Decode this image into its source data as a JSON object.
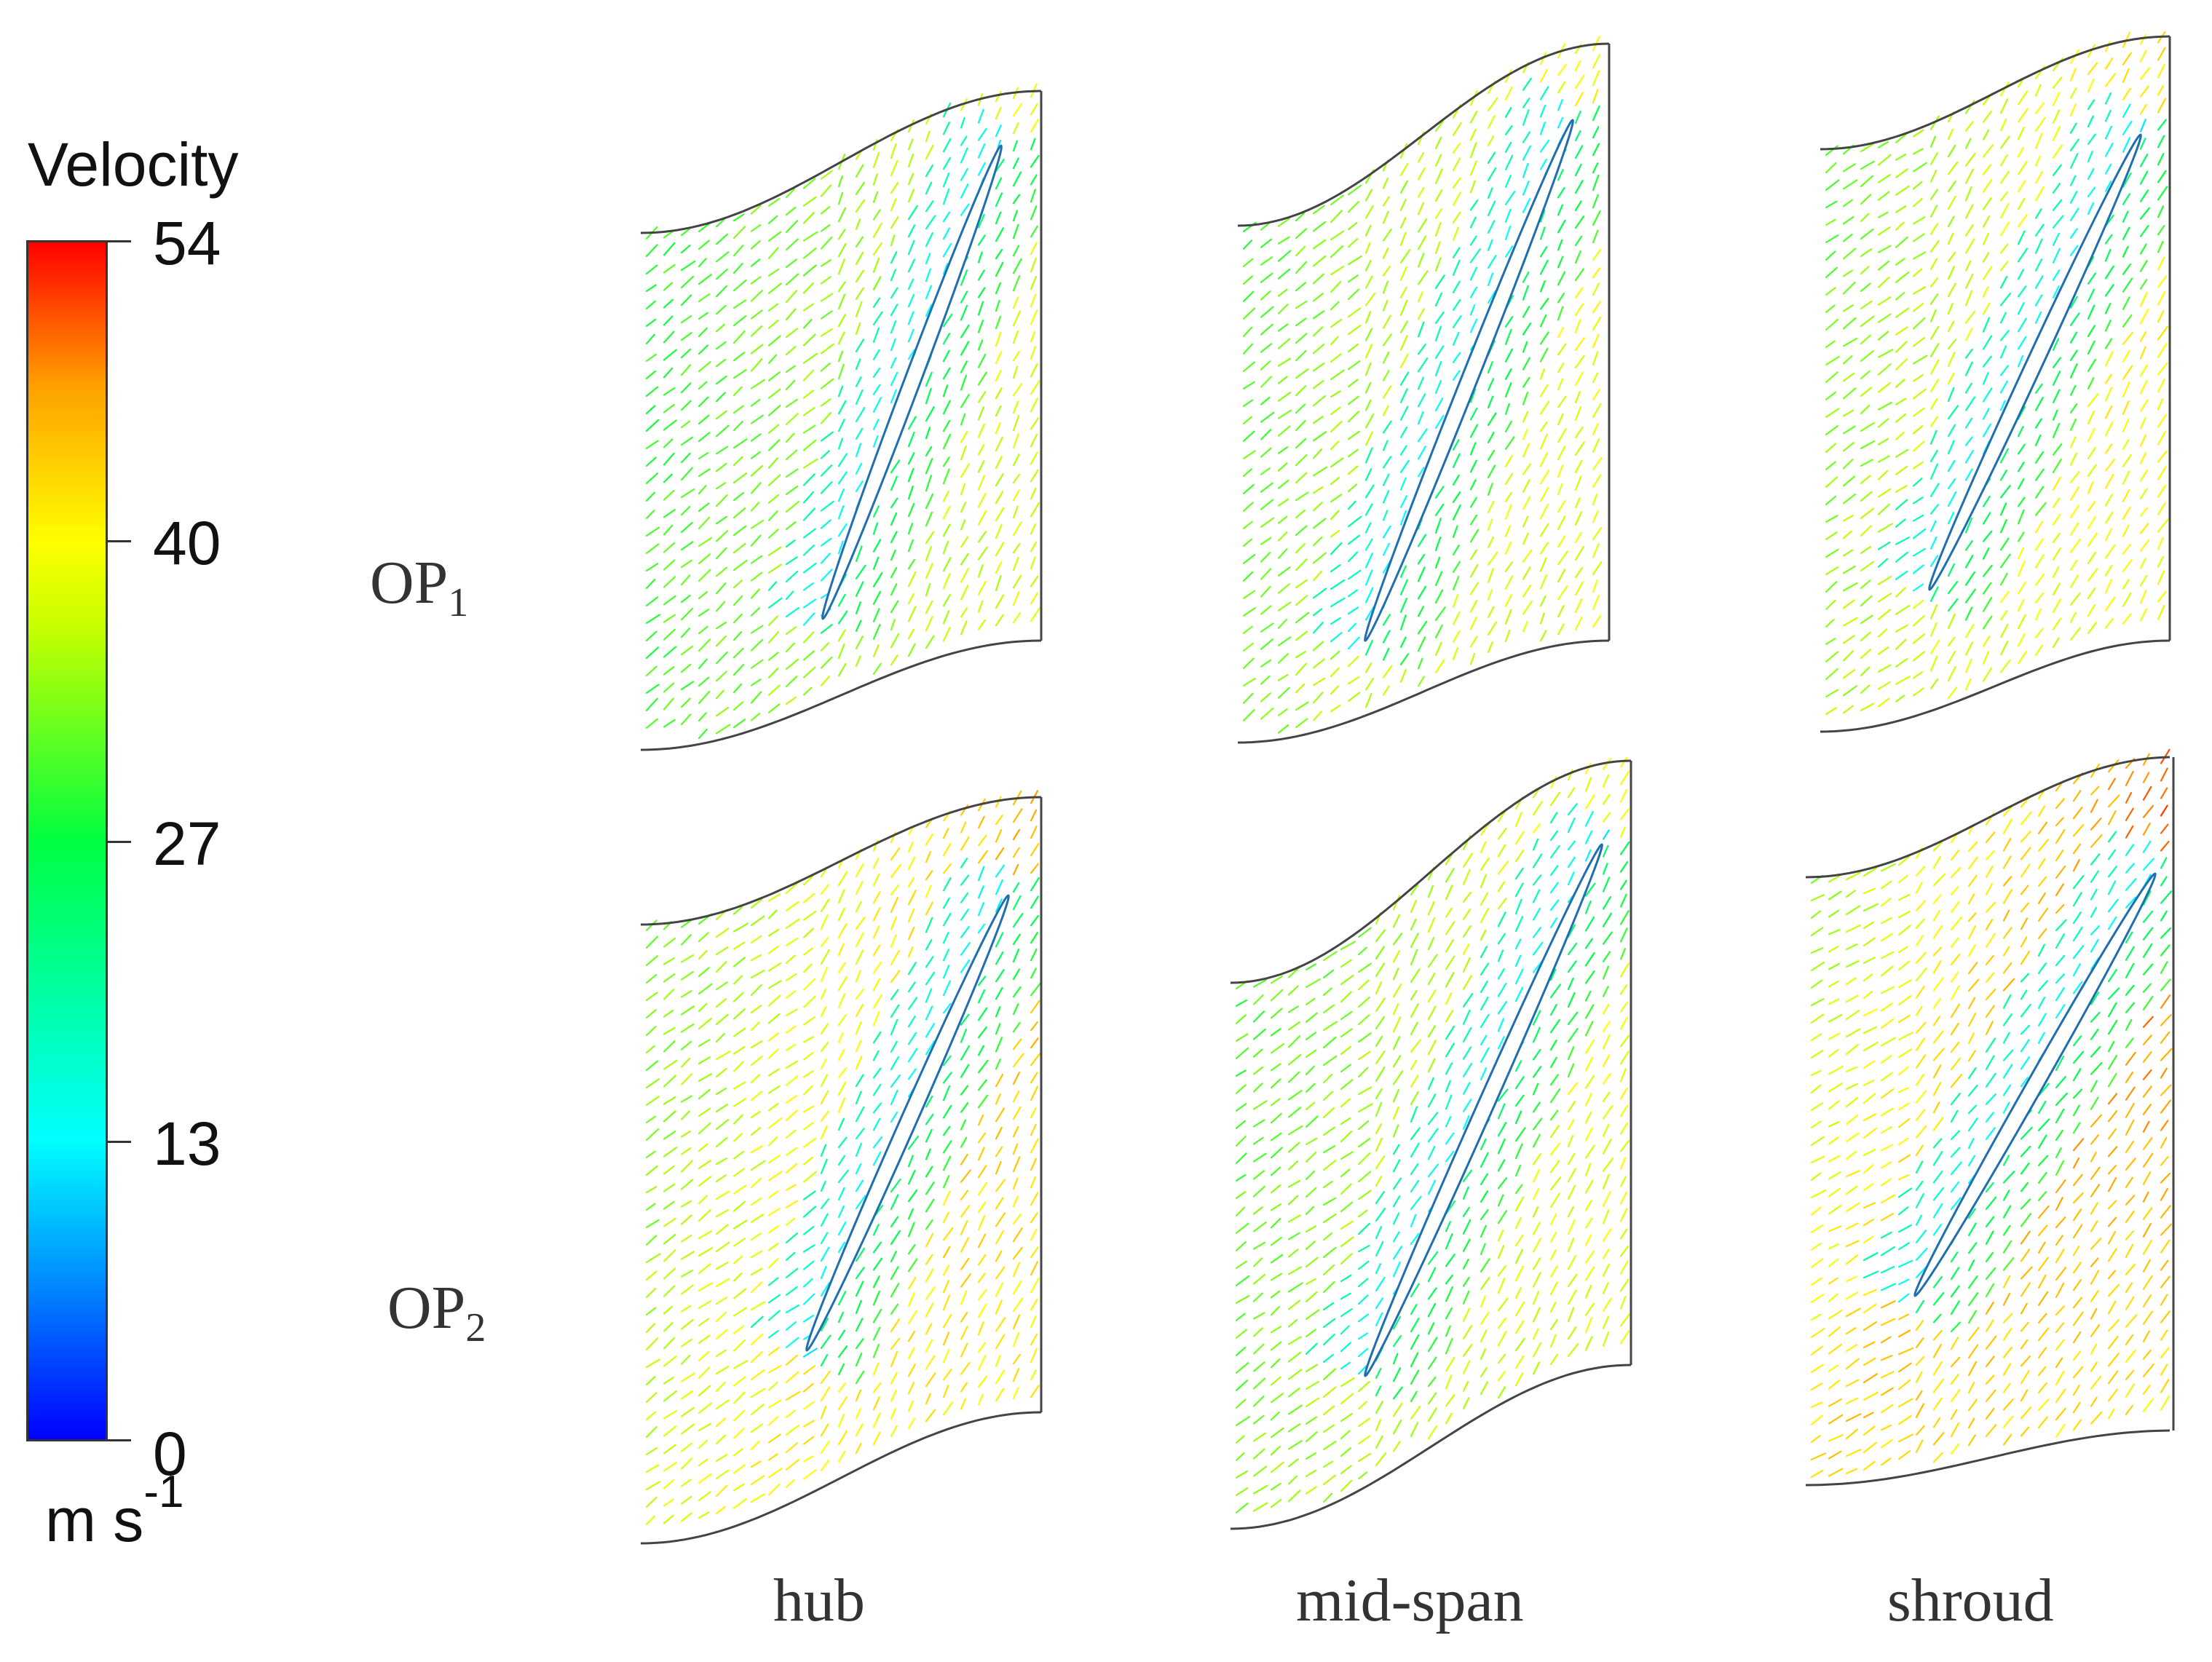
{
  "colorbar": {
    "title": "Velocity",
    "ticks": [
      "54",
      "40",
      "27",
      "13",
      "0"
    ],
    "unit_base": "m s",
    "unit_exp": "-1"
  },
  "rows": {
    "op1": "OP",
    "op1_sub": "1",
    "op2": "OP",
    "op2_sub": "2"
  },
  "columns": {
    "hub": "hub",
    "mid": "mid-span",
    "shroud": "shroud"
  },
  "colors": {
    "blade": "#ffffff",
    "outline": "#444444"
  }
}
